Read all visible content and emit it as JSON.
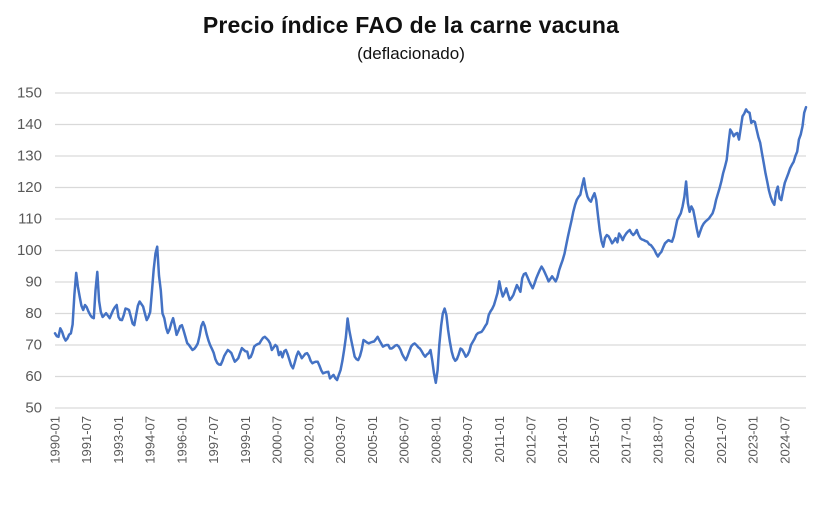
{
  "header": {
    "title": "Precio índice FAO de la carne vacuna",
    "subtitle": "(deflacionado)"
  },
  "chart_data": {
    "type": "line",
    "title": "Precio índice FAO de la carne vacuna",
    "subtitle": "(deflacionado)",
    "frequency": "monthly",
    "x_start": "1990-01",
    "x_end": "2025-07",
    "x_tick_interval_months": 18,
    "x_tick_labels": [
      "1990-01",
      "1991-07",
      "1993-01",
      "1994-07",
      "1996-01",
      "1997-07",
      "1999-01",
      "2000-07",
      "2002-01",
      "2003-07",
      "2005-01",
      "2006-07",
      "2008-01",
      "2009-07",
      "2011-01",
      "2012-07",
      "2014-01",
      "2015-07",
      "2017-01",
      "2018-07",
      "2020-01",
      "2021-07",
      "2023-01",
      "2024-07"
    ],
    "y_ticks": [
      150,
      140,
      130,
      120,
      110,
      100,
      90,
      80,
      70,
      60,
      50
    ],
    "ylim": [
      50,
      150
    ],
    "grid": "horizontal",
    "legend": "none",
    "line_color": "#4472C4",
    "grid_color": "#D9D9D9",
    "axis_label_color": "#595959",
    "values": [
      73.7,
      72.8,
      72.6,
      75.3,
      74.2,
      72.5,
      71.4,
      72,
      73.3,
      73.7,
      76.5,
      86,
      92.9,
      88.5,
      85.3,
      82.5,
      81.1,
      82.7,
      82,
      80.6,
      79.5,
      78.8,
      78.5,
      87.3,
      93.2,
      84,
      80.5,
      78.9,
      79.5,
      80.1,
      79.3,
      78.5,
      79.8,
      81.1,
      82,
      82.7,
      78.9,
      78,
      77.9,
      79.5,
      81.6,
      81.4,
      81.1,
      79,
      76.8,
      76.3,
      79.5,
      82.5,
      83.8,
      83,
      82.2,
      80,
      77.9,
      78.9,
      80.5,
      87.3,
      94,
      99.1,
      101.2,
      92,
      87.3,
      80,
      78.5,
      75.5,
      73.8,
      75,
      77,
      78.5,
      76,
      73.2,
      74.5,
      76,
      76.3,
      74.5,
      72.5,
      70.6,
      70,
      69.2,
      68.4,
      68.8,
      69.5,
      70.5,
      73,
      76,
      77.3,
      76,
      73.5,
      71.5,
      70,
      68.8,
      67.5,
      65.5,
      64.3,
      63.8,
      63.7,
      65,
      66.5,
      67.5,
      68.4,
      68,
      67.5,
      66,
      64.7,
      65.2,
      65.8,
      67.5,
      69,
      68.5,
      68,
      67.9,
      65.8,
      66.2,
      67.5,
      69.5,
      70,
      70.3,
      70.5,
      71.5,
      72.3,
      72.6,
      72.1,
      71.5,
      70.5,
      68.4,
      69.2,
      70,
      69.5,
      66.8,
      67.8,
      66.1,
      68,
      68.4,
      67,
      65.2,
      63.5,
      62.6,
      64.5,
      66.5,
      67.9,
      67,
      65.8,
      66.5,
      67.2,
      67.4,
      66.5,
      65,
      64.2,
      64.5,
      64.7,
      64.7,
      63.5,
      62,
      61,
      61.2,
      61.4,
      61.5,
      59.4,
      60,
      60.5,
      59.5,
      58.9,
      60.5,
      62.1,
      65,
      68.4,
      72.5,
      78.4,
      74.5,
      71.6,
      69,
      66.3,
      65.5,
      65.2,
      66.5,
      68.5,
      71.6,
      71.2,
      70.8,
      70.5,
      70.8,
      71,
      71.1,
      71.8,
      72.6,
      71.5,
      70.5,
      69.5,
      69.8,
      70,
      70,
      68.9,
      68.9,
      69.3,
      69.8,
      70,
      69.5,
      68.5,
      67,
      66,
      65.2,
      66.5,
      68,
      69.5,
      70.2,
      70.5,
      70,
      69.3,
      68.9,
      68,
      67,
      66.3,
      67,
      67.4,
      68.4,
      65,
      61,
      58,
      62,
      70,
      76,
      80,
      81.6,
      79.5,
      74.8,
      71,
      67.9,
      66,
      65,
      65.5,
      67,
      68.9,
      68.5,
      67.5,
      66.3,
      66.8,
      68,
      70,
      71,
      72,
      73.2,
      73.8,
      74,
      74.2,
      75,
      76,
      76.8,
      79.5,
      80.6,
      81.5,
      82.7,
      84.5,
      86.5,
      90.2,
      87.5,
      85.4,
      86.5,
      88,
      86,
      84.3,
      85,
      85.9,
      87.5,
      89,
      88,
      86.9,
      91.2,
      92.5,
      92.8,
      91.5,
      90.2,
      89,
      88,
      89.5,
      91.2,
      92.5,
      93.8,
      94.9,
      94,
      92.8,
      91.5,
      90.2,
      91,
      91.8,
      91,
      90.2,
      91.5,
      93.8,
      95.5,
      97,
      99,
      101.7,
      104.5,
      107.1,
      109.5,
      112.3,
      114.5,
      116.1,
      117,
      117.7,
      120.5,
      122.9,
      119.5,
      117.1,
      116,
      115.5,
      117,
      118.2,
      116.1,
      111,
      106.5,
      103,
      101.2,
      104,
      104.9,
      104.5,
      103.5,
      102.3,
      103,
      103.9,
      102.6,
      105.4,
      104.5,
      103.3,
      104.5,
      105.4,
      106,
      106.5,
      105.5,
      104.9,
      105.5,
      106.5,
      105,
      103.9,
      103.5,
      103.3,
      103,
      102.8,
      102,
      101.7,
      101,
      100.2,
      99,
      98.1,
      99,
      99.6,
      101,
      102.3,
      102.8,
      103.3,
      103,
      102.8,
      104.4,
      107,
      109.7,
      110.8,
      111.8,
      114,
      117.1,
      121.9,
      115,
      112.3,
      114,
      112.9,
      110.2,
      107,
      104.4,
      106,
      107.6,
      108.6,
      109.2,
      109.7,
      110.2,
      111,
      111.8,
      113.5,
      116.1,
      118,
      119.8,
      122,
      124.5,
      126.5,
      128.8,
      133.7,
      138.4,
      137.5,
      136.3,
      137,
      137.3,
      135.2,
      139,
      142.6,
      143.5,
      144.8,
      144,
      143.7,
      140.5,
      141.1,
      140.8,
      138.4,
      136,
      134.2,
      131,
      127.8,
      124.5,
      121.9,
      119,
      117,
      115.5,
      114.5,
      118.5,
      120.3,
      116.5,
      116,
      119,
      121.5,
      123,
      124.5,
      126.1,
      127.2,
      128.2,
      130,
      131.4,
      135.2,
      136.8,
      139.4,
      143.7,
      145.5
    ]
  }
}
